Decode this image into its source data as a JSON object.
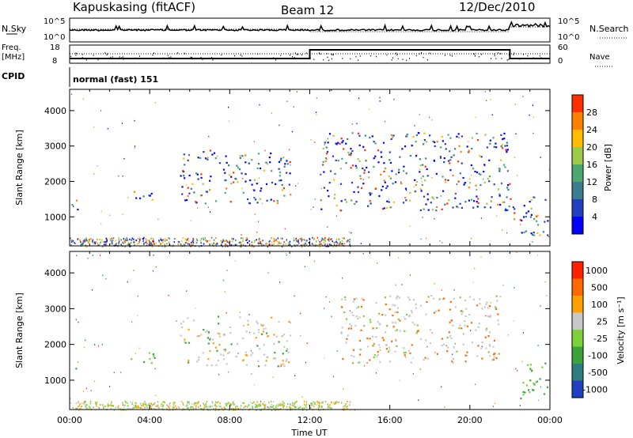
{
  "header": {
    "title": "Kapuskasing (fitACF)",
    "beam": "Beam 12",
    "date": "12/Dec/2010"
  },
  "noise_panel": {
    "left_label": "N.Sky",
    "right_label": "N.Search",
    "left_ticks": [
      "10^5",
      "10^0"
    ],
    "right_ticks": [
      "10^5",
      "10^0"
    ]
  },
  "freq_panel": {
    "left_label_line1": "Freq.",
    "left_label_line2": "[MHz]",
    "right_label": "Nave",
    "left_ticks": [
      "18",
      "8"
    ],
    "right_ticks": [
      "60",
      "0"
    ]
  },
  "cpid": {
    "label": "CPID",
    "value": "normal (fast) 151"
  },
  "chart_data": [
    {
      "type": "heatmap",
      "name": "power",
      "ylabel": "Slant Range [km]",
      "xlabel": "",
      "yticks": [
        "1000",
        "2000",
        "3000",
        "4000"
      ],
      "ylim": [
        180,
        4600
      ],
      "xlim_hours": [
        0,
        24
      ],
      "colorbar_label": "Power [dB]",
      "colorbar_ticks": [
        "4",
        "8",
        "12",
        "16",
        "20",
        "24",
        "28"
      ],
      "colors": [
        "#0000ff",
        "#2040c0",
        "#3c7c8c",
        "#4ca86c",
        "#9cc84c",
        "#ffbc00",
        "#ff8000",
        "#ff3000"
      ],
      "echo_regions": [
        {
          "t_start": 0.0,
          "t_end": 0.4,
          "range_start": 1100,
          "range_end": 1500
        },
        {
          "t_start": 3.0,
          "t_end": 4.6,
          "range_start": 1500,
          "range_end": 1800
        },
        {
          "t_start": 5.5,
          "t_end": 11.0,
          "range_start": 1400,
          "range_end": 2900
        },
        {
          "t_start": 12.5,
          "t_end": 22.0,
          "range_start": 1200,
          "range_end": 3400
        },
        {
          "t_start": 22.0,
          "t_end": 24.0,
          "range_start": 500,
          "range_end": 1600
        }
      ]
    },
    {
      "type": "heatmap",
      "name": "velocity",
      "ylabel": "Slant Range [km]",
      "xlabel": "Time UT",
      "yticks": [
        "1000",
        "2000",
        "3000",
        "4000"
      ],
      "ylim": [
        180,
        4600
      ],
      "xticks": [
        "00:00",
        "04:00",
        "08:00",
        "12:00",
        "16:00",
        "20:00",
        "00:00"
      ],
      "xlim_hours": [
        0,
        24
      ],
      "colorbar_label": "Velocity [m s⁻¹]",
      "colorbar_ticks": [
        "1000",
        "500",
        "100",
        "25",
        "-25",
        "-100",
        "-500",
        "-1000"
      ],
      "colors": [
        "#2040c0",
        "#2c7c80",
        "#3ca23c",
        "#7cd03c",
        "#c8c8c8",
        "#ffa000",
        "#ff6a00",
        "#ff2000"
      ],
      "echo_regions": [
        {
          "t_start": 0.0,
          "t_end": 0.3,
          "range_start": 1200,
          "range_end": 1400
        },
        {
          "t_start": 3.0,
          "t_end": 4.6,
          "range_start": 1500,
          "range_end": 1800
        },
        {
          "t_start": 5.5,
          "t_end": 11.0,
          "range_start": 1400,
          "range_end": 2800
        },
        {
          "t_start": 13.5,
          "t_end": 21.5,
          "range_start": 1500,
          "range_end": 3400
        },
        {
          "t_start": 22.5,
          "t_end": 24.0,
          "range_start": 500,
          "range_end": 1500
        }
      ]
    }
  ]
}
